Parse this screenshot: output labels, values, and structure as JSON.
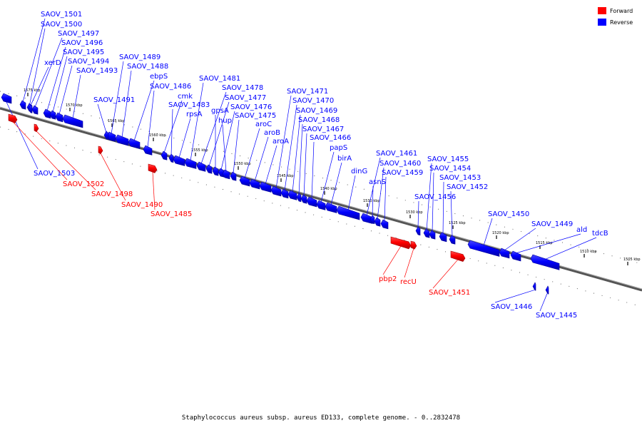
{
  "caption": "Staphylococcus aureus subsp. aureus ED133, complete genome. - 0..2832478",
  "legend": [
    {
      "label": "Forward",
      "color": "#ff0000"
    },
    {
      "label": "Reverse",
      "color": "#0000ff"
    }
  ],
  "colors": {
    "forward": "#ff0000",
    "forward_dark": "#aa0000",
    "reverse": "#0000ff",
    "reverse_dark": "#0000a0",
    "axis": "#555555"
  },
  "ticks": [
    "1575 kbp",
    "1570 kbp",
    "1565 kbp",
    "1560 kbp",
    "1555 kbp",
    "1550 kbp",
    "1545 kbp",
    "1540 kbp",
    "1535 kbp",
    "1530 kbp",
    "1525 kbp",
    "1520 kbp",
    "1515 kbp",
    "1510 kbp",
    "1505 kbp"
  ],
  "genes": [
    {
      "name": "SAOV_1501",
      "strand": "reverse"
    },
    {
      "name": "SAOV_1500",
      "strand": "reverse"
    },
    {
      "name": "SAOV_1497",
      "strand": "reverse"
    },
    {
      "name": "SAOV_1496",
      "strand": "reverse"
    },
    {
      "name": "SAOV_1495",
      "strand": "reverse"
    },
    {
      "name": "xerD",
      "strand": "reverse"
    },
    {
      "name": "SAOV_1494",
      "strand": "reverse"
    },
    {
      "name": "SAOV_1493",
      "strand": "reverse"
    },
    {
      "name": "SAOV_1489",
      "strand": "reverse"
    },
    {
      "name": "SAOV_1488",
      "strand": "reverse"
    },
    {
      "name": "ebpS",
      "strand": "reverse"
    },
    {
      "name": "SAOV_1491",
      "strand": "reverse"
    },
    {
      "name": "SAOV_1486",
      "strand": "reverse"
    },
    {
      "name": "cmk",
      "strand": "reverse"
    },
    {
      "name": "SAOV_1483",
      "strand": "reverse"
    },
    {
      "name": "rpsA",
      "strand": "reverse"
    },
    {
      "name": "SAOV_1481",
      "strand": "reverse"
    },
    {
      "name": "SAOV_1478",
      "strand": "reverse"
    },
    {
      "name": "SAOV_1477",
      "strand": "reverse"
    },
    {
      "name": "gpsA",
      "strand": "reverse"
    },
    {
      "name": "SAOV_1476",
      "strand": "reverse"
    },
    {
      "name": "hup",
      "strand": "reverse"
    },
    {
      "name": "SAOV_1475",
      "strand": "reverse"
    },
    {
      "name": "aroC",
      "strand": "reverse"
    },
    {
      "name": "aroB",
      "strand": "reverse"
    },
    {
      "name": "aroA",
      "strand": "reverse"
    },
    {
      "name": "SAOV_1471",
      "strand": "reverse"
    },
    {
      "name": "SAOV_1470",
      "strand": "reverse"
    },
    {
      "name": "SAOV_1469",
      "strand": "reverse"
    },
    {
      "name": "SAOV_1468",
      "strand": "reverse"
    },
    {
      "name": "SAOV_1467",
      "strand": "reverse"
    },
    {
      "name": "SAOV_1466",
      "strand": "reverse"
    },
    {
      "name": "papS",
      "strand": "reverse"
    },
    {
      "name": "birA",
      "strand": "reverse"
    },
    {
      "name": "dinG",
      "strand": "reverse"
    },
    {
      "name": "SAOV_1461",
      "strand": "reverse"
    },
    {
      "name": "SAOV_1460",
      "strand": "reverse"
    },
    {
      "name": "SAOV_1459",
      "strand": "reverse"
    },
    {
      "name": "asnS",
      "strand": "reverse"
    },
    {
      "name": "SAOV_1455",
      "strand": "reverse"
    },
    {
      "name": "SAOV_1454",
      "strand": "reverse"
    },
    {
      "name": "SAOV_1453",
      "strand": "reverse"
    },
    {
      "name": "SAOV_1456",
      "strand": "reverse"
    },
    {
      "name": "SAOV_1452",
      "strand": "reverse"
    },
    {
      "name": "SAOV_1450",
      "strand": "reverse"
    },
    {
      "name": "SAOV_1449",
      "strand": "reverse"
    },
    {
      "name": "ald",
      "strand": "reverse"
    },
    {
      "name": "tdcB",
      "strand": "reverse"
    },
    {
      "name": "SAOV_1503",
      "strand": "reverse"
    },
    {
      "name": "SAOV_1446",
      "strand": "reverse"
    },
    {
      "name": "SAOV_1445",
      "strand": "reverse"
    },
    {
      "name": "SAOV_1502",
      "strand": "forward"
    },
    {
      "name": "SAOV_1498",
      "strand": "forward"
    },
    {
      "name": "SAOV_1490",
      "strand": "forward"
    },
    {
      "name": "SAOV_1485",
      "strand": "forward"
    },
    {
      "name": "pbp2",
      "strand": "forward"
    },
    {
      "name": "recU",
      "strand": "forward"
    },
    {
      "name": "SAOV_1451",
      "strand": "forward"
    }
  ]
}
